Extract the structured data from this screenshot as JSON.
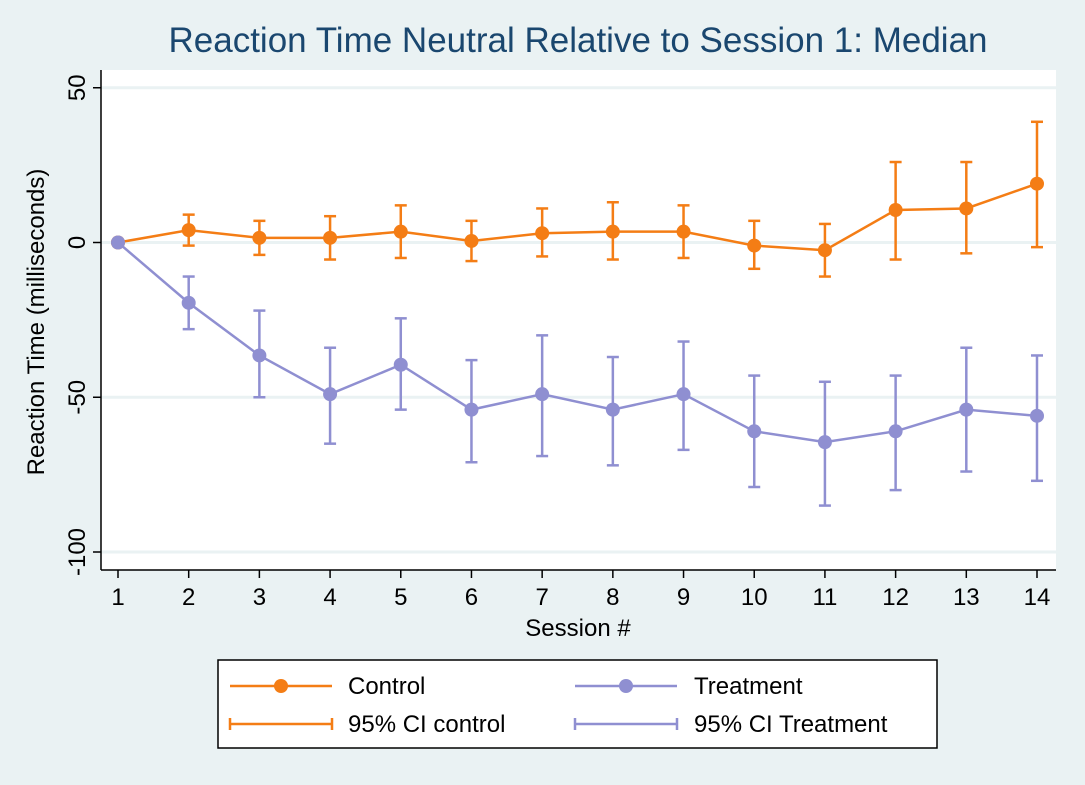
{
  "chart_data": {
    "type": "line",
    "title": "Reaction Time Neutral Relative to Session 1: Median",
    "xlabel": "Session #",
    "ylabel": "Reaction Time (milliseconds)",
    "x": [
      1,
      2,
      3,
      4,
      5,
      6,
      7,
      8,
      9,
      10,
      11,
      12,
      13,
      14
    ],
    "xticks": [
      "1",
      "2",
      "3",
      "4",
      "5",
      "6",
      "7",
      "8",
      "9",
      "10",
      "11",
      "12",
      "13",
      "14"
    ],
    "yticks": [
      "50",
      "0",
      "-50",
      "-100"
    ],
    "ytick_values": [
      50,
      0,
      -50,
      -100
    ],
    "ylim": [
      -106,
      56
    ],
    "grid": true,
    "legend_position": "bottom",
    "series": [
      {
        "name": "Control",
        "color": "#f47d15",
        "values": [
          0,
          4,
          1.5,
          1.5,
          3.5,
          0.5,
          3,
          3.5,
          3.5,
          -1,
          -2.5,
          10.5,
          11,
          19
        ],
        "ci_low": [
          0,
          -1,
          -4,
          -5.5,
          -5,
          -6,
          -4.5,
          -5.5,
          -5,
          -8.5,
          -11,
          -5.5,
          -3.5,
          -1.5
        ],
        "ci_high": [
          0,
          9,
          7,
          8.5,
          12,
          7,
          11,
          13,
          12,
          7,
          6,
          26,
          26,
          39
        ]
      },
      {
        "name": "Treatment",
        "color": "#8f8fd1",
        "values": [
          0,
          -19.5,
          -36.5,
          -49,
          -39.5,
          -54,
          -49,
          -54,
          -49,
          -61,
          -64.5,
          -61,
          -54,
          -56
        ],
        "ci_low": [
          0,
          -28,
          -50,
          -65,
          -54,
          -71,
          -69,
          -72,
          -67,
          -79,
          -85,
          -80,
          -74,
          -77
        ],
        "ci_high": [
          0,
          -11,
          -22,
          -34,
          -24.5,
          -38,
          -30,
          -37,
          -32,
          -43,
          -45,
          -43,
          -34,
          -36.5
        ]
      }
    ],
    "legend": {
      "entries": [
        "Control",
        "Treatment",
        "95% CI control",
        "95% CI Treatment"
      ]
    }
  }
}
